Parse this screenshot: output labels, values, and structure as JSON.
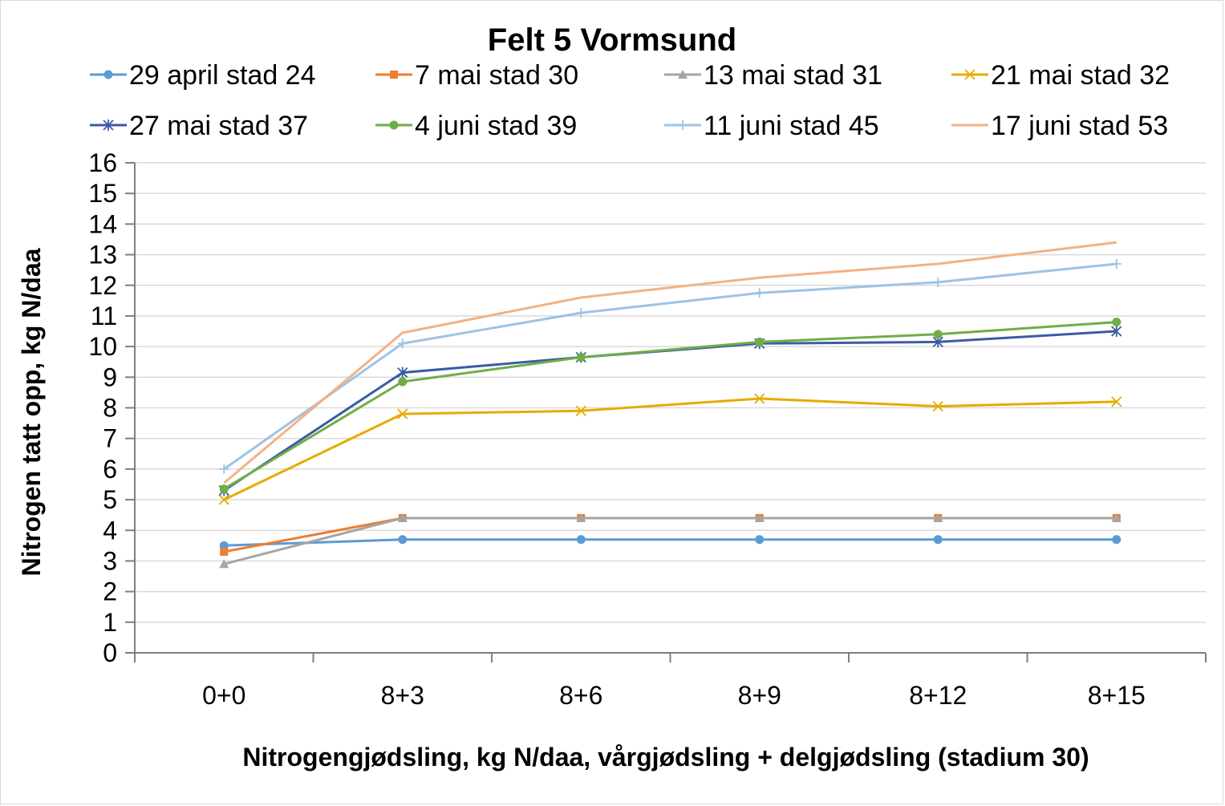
{
  "chart_data": {
    "type": "line",
    "title": "Felt 5 Vormsund",
    "xlabel": "Nitrogengjødsling, kg N/daa, vårgjødsling + delgjødsling (stadium 30)",
    "ylabel": "Nitrogen tatt opp, kg N/daa",
    "ylim": [
      0,
      16
    ],
    "yticks": [
      "0",
      "1",
      "2",
      "3",
      "4",
      "5",
      "6",
      "7",
      "8",
      "9",
      "10",
      "11",
      "12",
      "13",
      "14",
      "15",
      "16"
    ],
    "categories": [
      "0+0",
      "8+3",
      "8+6",
      "8+9",
      "8+12",
      "8+15"
    ],
    "grid": true,
    "legend_position": "top",
    "series": [
      {
        "name": "29 april stad 24",
        "color": "#5b9bd5",
        "marker": "circle",
        "values": [
          3.5,
          3.7,
          3.7,
          3.7,
          3.7,
          3.7
        ]
      },
      {
        "name": "7 mai stad 30",
        "color": "#ed7d31",
        "marker": "square",
        "values": [
          3.3,
          4.4,
          4.4,
          4.4,
          4.4,
          4.4
        ]
      },
      {
        "name": "13 mai stad 31",
        "color": "#a5a5a5",
        "marker": "triangle",
        "values": [
          2.9,
          4.4,
          4.4,
          4.4,
          4.4,
          4.4
        ]
      },
      {
        "name": "21 mai stad 32",
        "color": "#e6ab00",
        "marker": "x",
        "values": [
          5.0,
          7.8,
          7.9,
          8.3,
          8.05,
          8.2
        ]
      },
      {
        "name": "27 mai stad 37",
        "color": "#3b5ba5",
        "marker": "star",
        "values": [
          5.3,
          9.15,
          9.65,
          10.1,
          10.15,
          10.5
        ]
      },
      {
        "name": "4 juni stad 39",
        "color": "#70ad47",
        "marker": "circle",
        "values": [
          5.35,
          8.85,
          9.65,
          10.15,
          10.4,
          10.8
        ]
      },
      {
        "name": "11 juni stad 45",
        "color": "#9dc3e6",
        "marker": "plus",
        "values": [
          6.0,
          10.1,
          11.1,
          11.75,
          12.1,
          12.7
        ]
      },
      {
        "name": "17 juni stad 53",
        "color": "#f4b183",
        "marker": "none",
        "values": [
          5.55,
          10.45,
          11.6,
          12.25,
          12.7,
          13.4
        ]
      }
    ]
  }
}
